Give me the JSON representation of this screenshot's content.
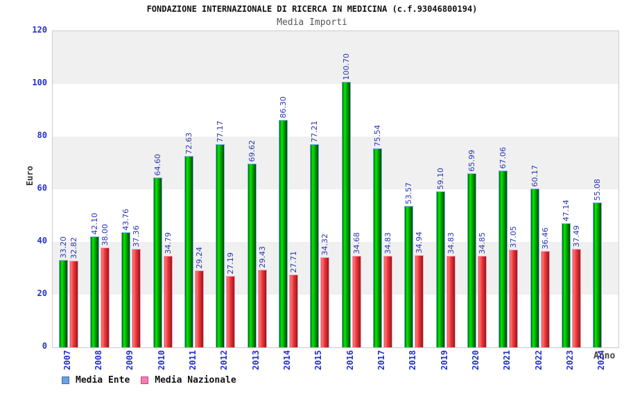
{
  "header": {
    "title": "FONDAZIONE INTERNAZIONALE DI RICERCA IN MEDICINA (c.f.93046800194)",
    "subtitle": "Media Importi"
  },
  "chart_data": {
    "type": "bar",
    "title": "FONDAZIONE INTERNAZIONALE DI RICERCA IN MEDICINA (c.f.93046800194)",
    "subtitle": "Media Importi",
    "xlabel": "Anno",
    "ylabel": "Euro",
    "ylim": [
      0,
      120
    ],
    "yticks": [
      0,
      20,
      40,
      60,
      80,
      100,
      120
    ],
    "grid": "horizontal-bands",
    "band_colors": [
      "#f0f0f0",
      "#ffffff"
    ],
    "legend_position": "bottom-left",
    "categories": [
      "2007",
      "2008",
      "2009",
      "2010",
      "2011",
      "2012",
      "2013",
      "2014",
      "2015",
      "2016",
      "2017",
      "2018",
      "2019",
      "2020",
      "2021",
      "2022",
      "2023",
      "2024"
    ],
    "series": [
      {
        "name": "Media Ente",
        "color": "#00cc00",
        "outline_color": "#7fa8e8",
        "values": [
          33.2,
          42.1,
          43.76,
          64.6,
          72.63,
          77.17,
          69.62,
          86.3,
          77.21,
          100.7,
          75.54,
          53.57,
          59.1,
          65.99,
          67.06,
          60.17,
          47.14,
          55.08
        ]
      },
      {
        "name": "Media Nazionale",
        "color": "#ee3333",
        "outline_color": "#ff9cb8",
        "values": [
          32.82,
          38.0,
          37.36,
          34.79,
          29.24,
          27.19,
          29.43,
          27.71,
          34.32,
          34.68,
          34.83,
          34.94,
          34.83,
          34.85,
          37.05,
          36.46,
          37.49,
          null
        ]
      }
    ],
    "value_label_color": "#2a35b2",
    "tick_label_color": "#2230cc"
  },
  "legend": {
    "items": [
      {
        "label": "Media Ente",
        "swatch": "#6fa0dd",
        "border": "#3f6fae"
      },
      {
        "label": "Media Nazionale",
        "swatch": "#f07fad",
        "border": "#c2457e"
      }
    ]
  },
  "axis": {
    "y_title": "Euro",
    "x_title": "Anno"
  }
}
